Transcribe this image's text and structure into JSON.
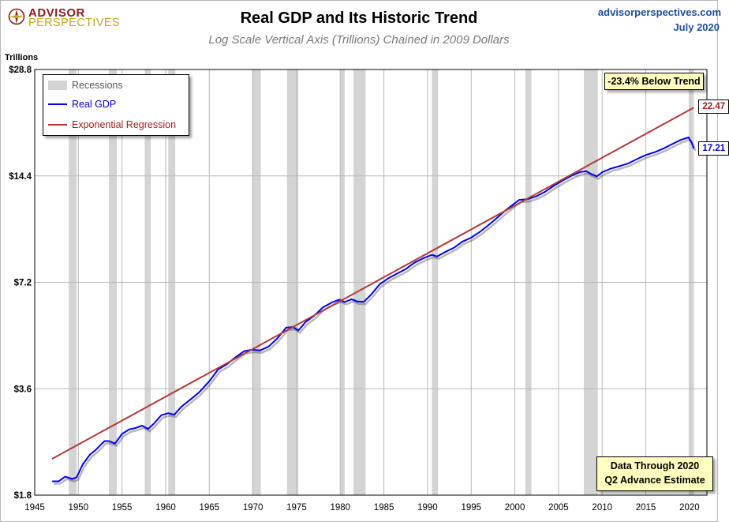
{
  "header": {
    "logo_line1": "ADVISOR",
    "logo_line2": "PERSPECTIVES",
    "title": "Real GDP and Its Historic Trend",
    "subtitle": "Log Scale Vertical Axis (Trillions) Chained in 2009 Dollars",
    "site": "advisorperspectives.com",
    "date": "July 2020"
  },
  "annotations": {
    "below_trend": "-23.4% Below Trend",
    "data_through_line1": "Data Through 2020",
    "data_through_line2": "Q2 Advance Estimate",
    "trend_end_label": "22.47",
    "gdp_end_label": "17.21"
  },
  "colors": {
    "gdp": "#0000ee",
    "trend": "#b03a3a",
    "recession": "#d4d4d4",
    "grid": "#b8b8b8",
    "note_bg": "#ffffc0",
    "logo_red": "#8b1c1c",
    "logo_gold": "#c9a227",
    "site_blue": "#1f4e9c"
  },
  "chart_data": {
    "type": "line",
    "title": "Real GDP and Its Historic Trend",
    "subtitle": "Log Scale Vertical Axis (Trillions) Chained in 2009 Dollars",
    "ylabel": "Trillions",
    "xlabel": "",
    "y_scale": "log2",
    "xlim": [
      1945,
      2022
    ],
    "ylim": [
      1.8,
      28.8
    ],
    "y_ticks": [
      1.8,
      3.6,
      7.2,
      14.4,
      28.8
    ],
    "y_tick_labels": [
      "$1.8",
      "$3.6",
      "$7.2",
      "$14.4",
      "$28.8"
    ],
    "x_ticks": [
      1945,
      1950,
      1955,
      1960,
      1965,
      1970,
      1975,
      1980,
      1985,
      1990,
      1995,
      2000,
      2005,
      2010,
      2015,
      2020
    ],
    "x_tick_labels": [
      "1945",
      "1950",
      "1955",
      "1960",
      "1965",
      "1970",
      "1975",
      "1980",
      "1985",
      "1990",
      "1995",
      "2000",
      "2005",
      "2010",
      "2015",
      "2020"
    ],
    "grid": true,
    "legend": {
      "placement": "top-left",
      "entries": [
        "Recessions",
        "Real GDP",
        "Exponential Regression"
      ]
    },
    "recessions": [
      [
        1948.9,
        1949.8
      ],
      [
        1953.5,
        1954.4
      ],
      [
        1957.6,
        1958.3
      ],
      [
        1960.3,
        1961.1
      ],
      [
        1969.9,
        1970.9
      ],
      [
        1973.9,
        1975.2
      ],
      [
        1980.0,
        1980.5
      ],
      [
        1981.5,
        1982.9
      ],
      [
        1990.5,
        1991.2
      ],
      [
        2001.2,
        2001.9
      ],
      [
        2007.9,
        2009.5
      ],
      [
        2020.0,
        2020.5
      ]
    ],
    "series": [
      {
        "name": "Real GDP",
        "x": [
          1947,
          1947.75,
          1948.5,
          1949.3,
          1949.8,
          1950.5,
          1951.3,
          1952,
          1953,
          1953.5,
          1954.2,
          1955,
          1955.8,
          1956.6,
          1957.3,
          1958,
          1958.6,
          1959.5,
          1960.3,
          1961,
          1961.8,
          1962.8,
          1963.8,
          1965,
          1966,
          1967,
          1968,
          1969,
          1969.9,
          1970.8,
          1971.8,
          1972.8,
          1973.8,
          1974.6,
          1975.2,
          1976,
          1977,
          1978,
          1979,
          1979.9,
          1980.5,
          1981.3,
          1981.9,
          1982.7,
          1983.5,
          1984.5,
          1985.5,
          1986.5,
          1987.5,
          1988.5,
          1989.5,
          1990.5,
          1991.1,
          1992,
          1993,
          1994,
          1995,
          1996,
          1997,
          1998,
          1999,
          2000.5,
          2001.5,
          2002.5,
          2003.5,
          2004.5,
          2005.5,
          2006.5,
          2007.5,
          2008.2,
          2008.7,
          2009.4,
          2010,
          2011,
          2012,
          2013,
          2014,
          2015,
          2016,
          2017,
          2018,
          2019,
          2019.9,
          2020.25,
          2020.5
        ],
        "y": [
          1.97,
          1.97,
          2.03,
          2.0,
          2.02,
          2.2,
          2.34,
          2.42,
          2.56,
          2.56,
          2.52,
          2.68,
          2.76,
          2.79,
          2.83,
          2.77,
          2.86,
          3.03,
          3.07,
          3.04,
          3.2,
          3.35,
          3.51,
          3.78,
          4.08,
          4.22,
          4.42,
          4.6,
          4.64,
          4.62,
          4.74,
          5.0,
          5.36,
          5.38,
          5.26,
          5.55,
          5.79,
          6.11,
          6.31,
          6.43,
          6.33,
          6.45,
          6.36,
          6.34,
          6.63,
          7.1,
          7.39,
          7.62,
          7.85,
          8.18,
          8.42,
          8.61,
          8.52,
          8.77,
          9.01,
          9.39,
          9.63,
          10.0,
          10.46,
          10.98,
          11.54,
          12.32,
          12.38,
          12.62,
          13.0,
          13.52,
          13.98,
          14.42,
          14.78,
          14.85,
          14.6,
          14.35,
          14.75,
          15.1,
          15.35,
          15.62,
          16.07,
          16.5,
          16.8,
          17.2,
          17.7,
          18.2,
          18.5,
          17.9,
          17.21
        ]
      },
      {
        "name": "Exponential Regression",
        "x": [
          1947,
          2020.5
        ],
        "y": [
          2.28,
          22.47
        ]
      }
    ]
  }
}
